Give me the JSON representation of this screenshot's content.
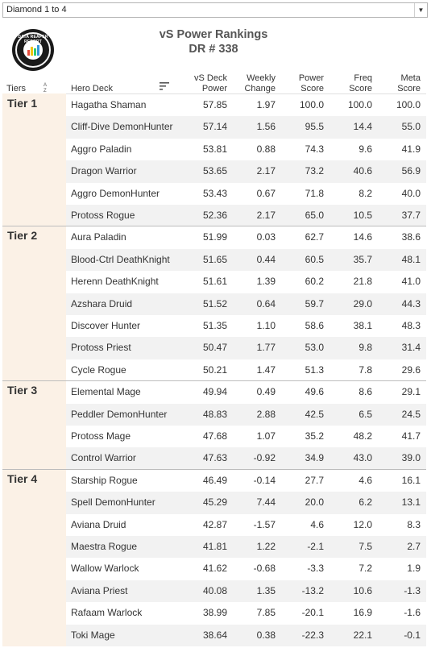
{
  "filter": {
    "value": "Diamond 1 to 4"
  },
  "title": {
    "line1": "vS Power Rankings",
    "line2": "DR # 338"
  },
  "logo": {
    "text_top": "DATA REAPER REPORT"
  },
  "columns": {
    "tiers": "Tiers",
    "deck": "Hero Deck",
    "power_l1": "vS Deck",
    "power_l2": "Power",
    "weekly_l1": "Weekly",
    "weekly_l2": "Change",
    "score_l1": "Power",
    "score_l2": "Score",
    "freq_l1": "Freq",
    "freq_l2": "Score",
    "meta_l1": "Meta",
    "meta_l2": "Score"
  },
  "tiers": [
    {
      "label": "Tier 1",
      "rows": [
        {
          "deck": "Hagatha Shaman",
          "power": "57.85",
          "weekly": "1.97",
          "score": "100.0",
          "freq": "100.0",
          "meta": "100.0"
        },
        {
          "deck": "Cliff-Dive DemonHunter",
          "power": "57.14",
          "weekly": "1.56",
          "score": "95.5",
          "freq": "14.4",
          "meta": "55.0"
        },
        {
          "deck": "Aggro Paladin",
          "power": "53.81",
          "weekly": "0.88",
          "score": "74.3",
          "freq": "9.6",
          "meta": "41.9"
        },
        {
          "deck": "Dragon Warrior",
          "power": "53.65",
          "weekly": "2.17",
          "score": "73.2",
          "freq": "40.6",
          "meta": "56.9"
        },
        {
          "deck": "Aggro DemonHunter",
          "power": "53.43",
          "weekly": "0.67",
          "score": "71.8",
          "freq": "8.2",
          "meta": "40.0"
        },
        {
          "deck": "Protoss Rogue",
          "power": "52.36",
          "weekly": "2.17",
          "score": "65.0",
          "freq": "10.5",
          "meta": "37.7"
        }
      ]
    },
    {
      "label": "Tier 2",
      "rows": [
        {
          "deck": "Aura Paladin",
          "power": "51.99",
          "weekly": "0.03",
          "score": "62.7",
          "freq": "14.6",
          "meta": "38.6"
        },
        {
          "deck": "Blood-Ctrl DeathKnight",
          "power": "51.65",
          "weekly": "0.44",
          "score": "60.5",
          "freq": "35.7",
          "meta": "48.1"
        },
        {
          "deck": "Herenn DeathKnight",
          "power": "51.61",
          "weekly": "1.39",
          "score": "60.2",
          "freq": "21.8",
          "meta": "41.0"
        },
        {
          "deck": "Azshara Druid",
          "power": "51.52",
          "weekly": "0.64",
          "score": "59.7",
          "freq": "29.0",
          "meta": "44.3"
        },
        {
          "deck": "Discover Hunter",
          "power": "51.35",
          "weekly": "1.10",
          "score": "58.6",
          "freq": "38.1",
          "meta": "48.3"
        },
        {
          "deck": "Protoss Priest",
          "power": "50.47",
          "weekly": "1.77",
          "score": "53.0",
          "freq": "9.8",
          "meta": "31.4"
        },
        {
          "deck": "Cycle Rogue",
          "power": "50.21",
          "weekly": "1.47",
          "score": "51.3",
          "freq": "7.8",
          "meta": "29.6"
        }
      ]
    },
    {
      "label": "Tier 3",
      "rows": [
        {
          "deck": "Elemental Mage",
          "power": "49.94",
          "weekly": "0.49",
          "score": "49.6",
          "freq": "8.6",
          "meta": "29.1"
        },
        {
          "deck": "Peddler DemonHunter",
          "power": "48.83",
          "weekly": "2.88",
          "score": "42.5",
          "freq": "6.5",
          "meta": "24.5"
        },
        {
          "deck": "Protoss Mage",
          "power": "47.68",
          "weekly": "1.07",
          "score": "35.2",
          "freq": "48.2",
          "meta": "41.7"
        },
        {
          "deck": "Control Warrior",
          "power": "47.63",
          "weekly": "-0.92",
          "score": "34.9",
          "freq": "43.0",
          "meta": "39.0"
        }
      ]
    },
    {
      "label": "Tier 4",
      "rows": [
        {
          "deck": "Starship Rogue",
          "power": "46.49",
          "weekly": "-0.14",
          "score": "27.7",
          "freq": "4.6",
          "meta": "16.1"
        },
        {
          "deck": "Spell DemonHunter",
          "power": "45.29",
          "weekly": "7.44",
          "score": "20.0",
          "freq": "6.2",
          "meta": "13.1"
        },
        {
          "deck": "Aviana Druid",
          "power": "42.87",
          "weekly": "-1.57",
          "score": "4.6",
          "freq": "12.0",
          "meta": "8.3"
        },
        {
          "deck": "Maestra Rogue",
          "power": "41.81",
          "weekly": "1.22",
          "score": "-2.1",
          "freq": "7.5",
          "meta": "2.7"
        },
        {
          "deck": "Wallow Warlock",
          "power": "41.62",
          "weekly": "-0.68",
          "score": "-3.3",
          "freq": "7.2",
          "meta": "1.9"
        },
        {
          "deck": "Aviana Priest",
          "power": "40.08",
          "weekly": "1.35",
          "score": "-13.2",
          "freq": "10.6",
          "meta": "-1.3"
        },
        {
          "deck": "Rafaam Warlock",
          "power": "38.99",
          "weekly": "7.85",
          "score": "-20.1",
          "freq": "16.9",
          "meta": "-1.6"
        },
        {
          "deck": "Toki Mage",
          "power": "38.64",
          "weekly": "0.38",
          "score": "-22.3",
          "freq": "22.1",
          "meta": "-0.1"
        }
      ]
    }
  ]
}
